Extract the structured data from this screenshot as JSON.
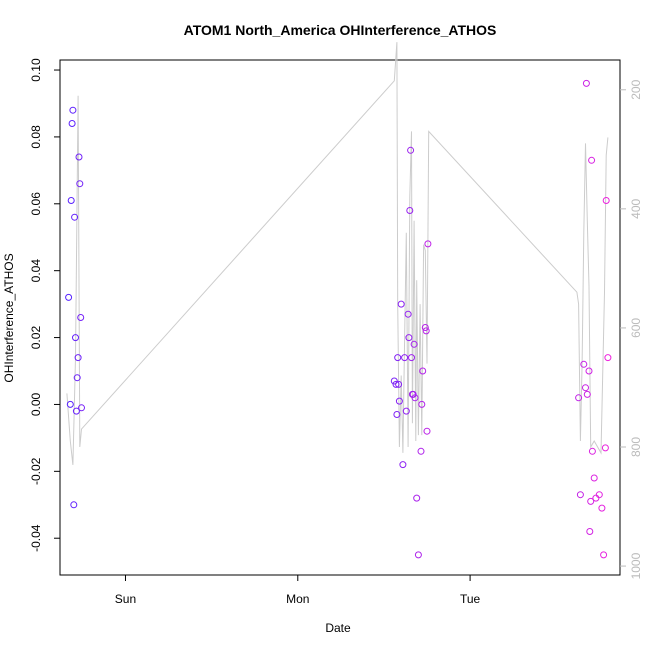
{
  "chart_data": {
    "type": "scatter",
    "title": "ATOM1 North_America OHInterference_ATHOS",
    "xlabel": "Date",
    "ylabel": "OHInterference_ATHOS",
    "x_unit": "days",
    "xlim": [
      -0.38,
      2.87
    ],
    "ylim": [
      -0.051,
      0.103
    ],
    "x_ticks": [
      {
        "value": 0,
        "label": "Sun"
      },
      {
        "value": 1,
        "label": "Mon"
      },
      {
        "value": 2,
        "label": "Tue"
      }
    ],
    "y_ticks": [
      -0.04,
      -0.02,
      0.0,
      0.02,
      0.04,
      0.06,
      0.08,
      0.1
    ],
    "y_tick_labels": [
      "-0.04",
      "-0.02",
      "0.00",
      "0.02",
      "0.04",
      "0.06",
      "0.08",
      "0.10"
    ],
    "y2lim": [
      1015,
      150
    ],
    "y2_ticks": [
      200,
      400,
      600,
      800,
      1000
    ],
    "y2_tick_labels": [
      "200",
      "400",
      "600",
      "800",
      "1000"
    ],
    "grid": false,
    "series": [
      {
        "type": "scatter",
        "color_start": "#5522ff",
        "color_end": "#ee22dd",
        "points": [
          [
            -0.33,
            0.032
          ],
          [
            -0.32,
            0.0
          ],
          [
            -0.315,
            0.061
          ],
          [
            -0.31,
            0.084
          ],
          [
            -0.305,
            0.088
          ],
          [
            -0.3,
            -0.03
          ],
          [
            -0.295,
            0.056
          ],
          [
            -0.29,
            0.02
          ],
          [
            -0.285,
            -0.002
          ],
          [
            -0.28,
            0.008
          ],
          [
            -0.275,
            0.014
          ],
          [
            -0.27,
            0.074
          ],
          [
            -0.265,
            0.066
          ],
          [
            -0.26,
            0.026
          ],
          [
            -0.255,
            -0.001
          ],
          [
            1.56,
            0.007
          ],
          [
            1.57,
            0.006
          ],
          [
            1.575,
            -0.003
          ],
          [
            1.58,
            0.014
          ],
          [
            1.585,
            0.006
          ],
          [
            1.59,
            0.001
          ],
          [
            1.6,
            0.03
          ],
          [
            1.61,
            -0.018
          ],
          [
            1.62,
            0.014
          ],
          [
            1.63,
            -0.002
          ],
          [
            1.64,
            0.027
          ],
          [
            1.645,
            0.02
          ],
          [
            1.65,
            0.058
          ],
          [
            1.655,
            0.076
          ],
          [
            1.66,
            0.014
          ],
          [
            1.665,
            0.003
          ],
          [
            1.67,
            0.003
          ],
          [
            1.675,
            0.018
          ],
          [
            1.68,
            0.002
          ],
          [
            1.69,
            -0.028
          ],
          [
            1.7,
            -0.045
          ],
          [
            1.715,
            -0.014
          ],
          [
            1.72,
            0.0
          ],
          [
            1.725,
            0.01
          ],
          [
            1.74,
            0.023
          ],
          [
            1.745,
            0.022
          ],
          [
            1.75,
            -0.008
          ],
          [
            1.755,
            0.048
          ],
          [
            2.63,
            0.002
          ],
          [
            2.64,
            -0.027
          ],
          [
            2.66,
            0.012
          ],
          [
            2.67,
            0.005
          ],
          [
            2.675,
            0.096
          ],
          [
            2.68,
            0.003
          ],
          [
            2.69,
            0.01
          ],
          [
            2.695,
            -0.038
          ],
          [
            2.7,
            -0.029
          ],
          [
            2.705,
            0.073
          ],
          [
            2.71,
            -0.014
          ],
          [
            2.72,
            -0.022
          ],
          [
            2.73,
            -0.028
          ],
          [
            2.75,
            -0.027
          ],
          [
            2.765,
            -0.031
          ],
          [
            2.775,
            -0.045
          ],
          [
            2.785,
            -0.013
          ],
          [
            2.79,
            0.061
          ],
          [
            2.8,
            0.014
          ]
        ]
      },
      {
        "type": "line",
        "axis": "right",
        "color": "#cccccc",
        "points": [
          [
            -0.34,
            710
          ],
          [
            -0.32,
            790
          ],
          [
            -0.305,
            830
          ],
          [
            -0.29,
            650
          ],
          [
            -0.275,
            210
          ],
          [
            -0.265,
            800
          ],
          [
            -0.255,
            770
          ],
          [
            1.56,
            185
          ],
          [
            1.575,
            120
          ],
          [
            1.58,
            560
          ],
          [
            1.59,
            800
          ],
          [
            1.6,
            680
          ],
          [
            1.61,
            810
          ],
          [
            1.62,
            620
          ],
          [
            1.63,
            440
          ],
          [
            1.64,
            800
          ],
          [
            1.65,
            380
          ],
          [
            1.66,
            270
          ],
          [
            1.665,
            760
          ],
          [
            1.675,
            420
          ],
          [
            1.685,
            790
          ],
          [
            1.69,
            520
          ],
          [
            1.7,
            780
          ],
          [
            1.71,
            560
          ],
          [
            1.72,
            780
          ],
          [
            1.73,
            460
          ],
          [
            1.74,
            470
          ],
          [
            1.75,
            660
          ],
          [
            1.76,
            270
          ],
          [
            2.62,
            540
          ],
          [
            2.63,
            560
          ],
          [
            2.64,
            790
          ],
          [
            2.65,
            660
          ],
          [
            2.66,
            440
          ],
          [
            2.67,
            290
          ],
          [
            2.68,
            420
          ],
          [
            2.69,
            530
          ],
          [
            2.7,
            800
          ],
          [
            2.72,
            790
          ],
          [
            2.76,
            810
          ],
          [
            2.78,
            540
          ],
          [
            2.79,
            310
          ],
          [
            2.8,
            280
          ]
        ]
      }
    ]
  }
}
